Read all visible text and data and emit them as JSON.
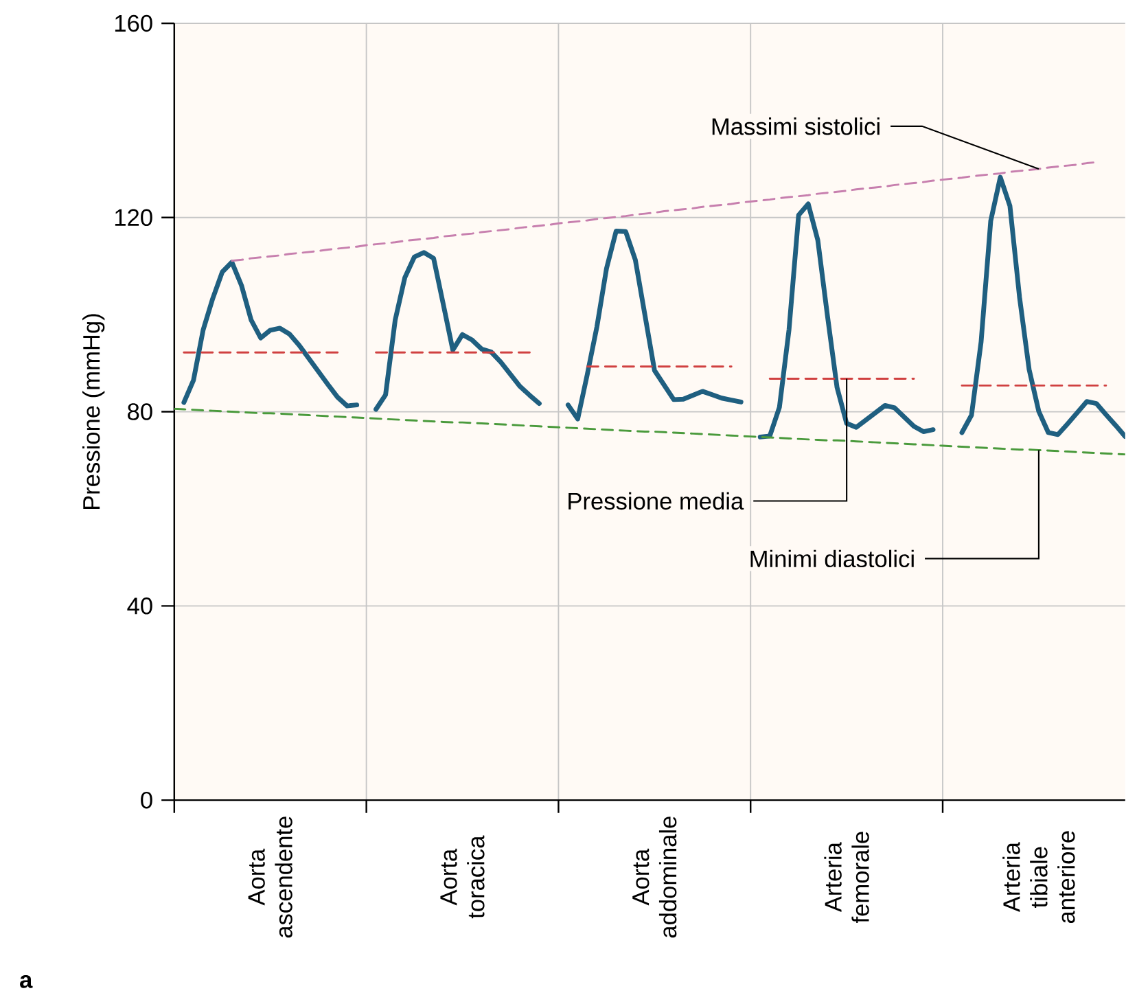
{
  "chart_data": {
    "type": "line",
    "ylabel": "Pressione (mmHg)",
    "ylim": [
      0,
      160
    ],
    "categories": [
      null,
      null,
      null,
      null,
      null,
      null,
      null,
      null,
      null,
      null,
      "Aorta ascendente",
      null,
      null,
      null,
      null,
      null,
      null,
      null,
      null,
      null,
      null,
      null,
      null,
      null,
      null,
      null,
      null,
      null,
      null,
      null,
      "Aorta toracica",
      null,
      null,
      null,
      null,
      null,
      null,
      null,
      null,
      null,
      null,
      null,
      null,
      null,
      null,
      null,
      null,
      null,
      null,
      null,
      "Aorta addominale",
      null,
      null,
      null,
      null,
      null,
      null,
      null,
      null,
      null,
      null,
      null,
      null,
      null,
      null,
      null,
      null,
      null,
      null,
      null,
      "Arteria femorale",
      null,
      null,
      null,
      null,
      null,
      null,
      null,
      null,
      null,
      null,
      null,
      null,
      null,
      null,
      null,
      null,
      null,
      null,
      null,
      "Arteria tibiale anteriore",
      null,
      null,
      null,
      null,
      null,
      null,
      null,
      null,
      null
    ],
    "yticks": [
      0,
      40,
      80,
      120,
      160
    ],
    "grid": true,
    "marker": "none",
    "series": [
      {
        "color": "#1f5f80",
        "line_style": "solid",
        "values": [
          null,
          81.9,
          86.5,
          96.8,
          103.3,
          108.8,
          110.8,
          106.0,
          98.9,
          95.2,
          96.8,
          97.2,
          96.0,
          93.7,
          91.0,
          88.3,
          85.6,
          83.0,
          81.2,
          81.4,
          null,
          80.5,
          83.5,
          98.9,
          107.6,
          111.9,
          112.8,
          111.6,
          102.2,
          92.7,
          95.9,
          94.8,
          92.9,
          92.3,
          90.2,
          87.7,
          85.2,
          83.4,
          81.7,
          null,
          null,
          81.4,
          78.5,
          87.7,
          97.5,
          109.5,
          117.2,
          117.1,
          111.3,
          99.9,
          88.5,
          85.5,
          82.5,
          82.6,
          83.4,
          84.2,
          83.5,
          82.8,
          82.4,
          82.0,
          null,
          74.8,
          75.0,
          80.9,
          96.9,
          120.5,
          122.8,
          115.3,
          99.8,
          85.0,
          77.6,
          76.8,
          78.3,
          79.8,
          81.3,
          80.8,
          78.9,
          77.0,
          75.9,
          76.3,
          null,
          null,
          75.7,
          79.3,
          94.4,
          119.3,
          128.3,
          122.4,
          103.6,
          88.7,
          80.1,
          75.7,
          75.3,
          77.5,
          79.8,
          82.1,
          81.7,
          79.4,
          77.2,
          74.9
        ]
      },
      {
        "color": "#c77fae",
        "line_style": "dashed",
        "values": [
          null,
          null,
          null,
          null,
          null,
          null,
          111.1,
          111.3,
          111.6,
          111.8,
          112.0,
          112.2,
          112.5,
          112.7,
          112.9,
          113.1,
          113.4,
          113.6,
          113.8,
          114.0,
          114.3,
          114.5,
          114.7,
          114.9,
          115.2,
          115.4,
          115.6,
          115.8,
          116.1,
          116.3,
          116.5,
          116.7,
          117.0,
          117.2,
          117.4,
          117.6,
          117.9,
          118.1,
          118.3,
          118.5,
          118.8,
          119.0,
          119.2,
          119.4,
          119.7,
          119.9,
          120.1,
          120.3,
          120.6,
          120.8,
          121.0,
          121.3,
          121.5,
          121.7,
          121.9,
          122.2,
          122.4,
          122.6,
          122.8,
          123.1,
          123.3,
          123.5,
          123.7,
          124.0,
          124.2,
          124.4,
          124.6,
          124.9,
          125.1,
          125.3,
          125.5,
          125.8,
          126.0,
          126.2,
          126.4,
          126.7,
          126.9,
          127.1,
          127.3,
          127.6,
          127.8,
          128.0,
          128.2,
          128.5,
          128.7,
          128.9,
          129.1,
          129.4,
          129.6,
          129.8,
          130.0,
          130.3,
          130.5,
          130.7,
          130.9,
          131.2,
          131.4,
          null,
          null,
          null
        ]
      },
      {
        "color": "#d04040",
        "line_style": "dashed",
        "values": [
          null,
          92.2,
          92.2,
          92.2,
          92.2,
          92.2,
          92.2,
          92.2,
          92.2,
          92.2,
          92.2,
          92.2,
          92.2,
          92.2,
          92.2,
          92.2,
          92.2,
          92.2,
          null,
          null,
          null,
          92.2,
          92.2,
          92.2,
          92.2,
          92.2,
          92.2,
          92.2,
          92.2,
          92.2,
          92.2,
          92.2,
          92.2,
          92.2,
          92.2,
          92.2,
          92.2,
          92.2,
          null,
          null,
          null,
          null,
          null,
          89.3,
          89.3,
          89.3,
          89.3,
          89.3,
          89.3,
          89.3,
          89.3,
          89.3,
          89.3,
          89.3,
          89.3,
          89.3,
          89.3,
          89.3,
          89.3,
          null,
          null,
          null,
          86.8,
          86.8,
          86.8,
          86.8,
          86.8,
          86.8,
          86.8,
          86.8,
          86.8,
          86.8,
          86.8,
          86.8,
          86.8,
          86.8,
          86.8,
          86.8,
          null,
          null,
          null,
          null,
          85.4,
          85.4,
          85.4,
          85.4,
          85.4,
          85.4,
          85.4,
          85.4,
          85.4,
          85.4,
          85.4,
          85.4,
          85.4,
          85.4,
          85.4,
          85.4,
          null,
          null
        ]
      },
      {
        "color": "#4a9a3c",
        "line_style": "dashed",
        "values": [
          80.6,
          80.5,
          80.4,
          80.3,
          80.2,
          80.1,
          80.0,
          79.9,
          79.8,
          79.7,
          79.7,
          79.6,
          79.5,
          79.4,
          79.3,
          79.2,
          79.1,
          79.0,
          78.9,
          78.8,
          78.7,
          78.6,
          78.5,
          78.4,
          78.3,
          78.2,
          78.1,
          78.0,
          77.9,
          77.8,
          77.8,
          77.7,
          77.6,
          77.5,
          77.4,
          77.3,
          77.2,
          77.1,
          77.0,
          76.9,
          76.8,
          76.7,
          76.6,
          76.5,
          76.4,
          76.3,
          76.2,
          76.1,
          76.0,
          75.9,
          75.9,
          75.8,
          75.7,
          75.6,
          75.5,
          75.4,
          75.3,
          75.2,
          75.1,
          75.0,
          74.9,
          74.8,
          74.7,
          74.6,
          74.5,
          74.4,
          74.3,
          74.2,
          74.1,
          74.1,
          74.0,
          73.9,
          73.8,
          73.7,
          73.6,
          73.5,
          73.4,
          73.3,
          73.2,
          73.1,
          73.0,
          72.9,
          72.8,
          72.7,
          72.6,
          72.5,
          72.4,
          72.3,
          72.2,
          72.2,
          72.1,
          72.0,
          71.9,
          71.8,
          71.7,
          71.6,
          71.5,
          71.4,
          71.3,
          71.2
        ]
      }
    ],
    "annotations": [
      {
        "text": "Massimi sistolici",
        "x": "Arteria tibiale anteriore",
        "y": 130.0
      },
      {
        "text": "Pressione media",
        "x": "Arteria femorale",
        "y": 86.8
      },
      {
        "text": "Minimi diastolici",
        "x": "Arteria tibiale anteriore",
        "y": 72.1
      },
      "a"
    ]
  }
}
